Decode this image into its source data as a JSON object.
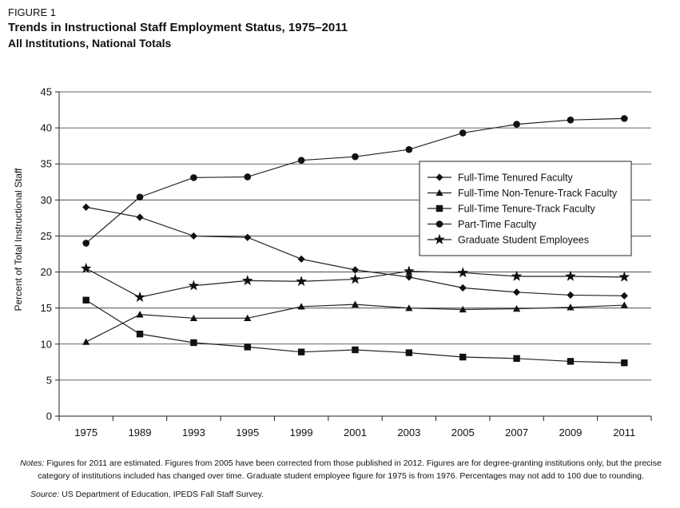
{
  "header": {
    "figure_label": "FIGURE 1",
    "title": "Trends in Instructional Staff Employment Status, 1975–2011",
    "subtitle": "All Institutions, National Totals"
  },
  "chart_data": {
    "type": "line",
    "xlabel": "",
    "ylabel": "Percent of Total Instructional Staff",
    "ylim": [
      0,
      45
    ],
    "yticks": [
      0,
      5,
      10,
      15,
      20,
      25,
      30,
      35,
      40,
      45
    ],
    "categories": [
      "1975",
      "1989",
      "1993",
      "1995",
      "1999",
      "2001",
      "2003",
      "2005",
      "2007",
      "2009",
      "2011"
    ],
    "grid": "horizontal",
    "legend_position": "right",
    "series": [
      {
        "name": "Full-Time Tenured Faculty",
        "marker": "diamond",
        "values": [
          29.0,
          27.6,
          25.0,
          24.8,
          21.8,
          20.3,
          19.3,
          17.8,
          17.2,
          16.8,
          16.7
        ]
      },
      {
        "name": "Full-Time Non-Tenure-Track Faculty",
        "marker": "triangle",
        "values": [
          10.3,
          14.1,
          13.6,
          13.6,
          15.2,
          15.5,
          15.0,
          14.8,
          14.9,
          15.1,
          15.4
        ]
      },
      {
        "name": "Full-Time Tenure-Track Faculty",
        "marker": "square",
        "values": [
          16.1,
          11.4,
          10.2,
          9.6,
          8.9,
          9.2,
          8.8,
          8.2,
          8.0,
          7.6,
          7.4
        ]
      },
      {
        "name": "Part-Time Faculty",
        "marker": "circle",
        "values": [
          24.0,
          30.4,
          33.1,
          33.2,
          35.5,
          36.0,
          37.0,
          39.3,
          40.5,
          41.1,
          41.3
        ]
      },
      {
        "name": "Graduate Student Employees",
        "marker": "star",
        "values": [
          20.5,
          16.5,
          18.1,
          18.8,
          18.7,
          19.0,
          20.1,
          19.9,
          19.4,
          19.4,
          19.3
        ]
      }
    ]
  },
  "footer": {
    "notes_label": "Notes:",
    "notes_text": " Figures for 2011 are estimated. Figures from 2005 have been corrected from those published in 2012. Figures are for degree-granting institutions only, but the precise category of institutions included has changed over time. Graduate student employee figure for 1975 is from 1976. Percentages may not add to 100 due to rounding.",
    "source_label": "Source:",
    "source_text": " US Department of Education, IPEDS Fall Staff Survey."
  }
}
